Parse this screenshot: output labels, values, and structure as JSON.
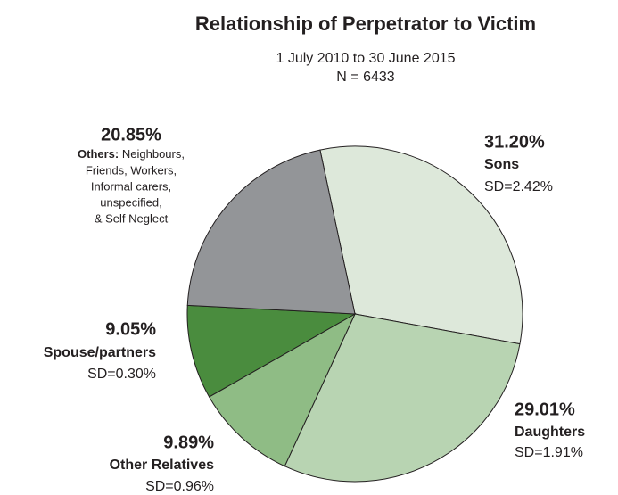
{
  "chart_data": {
    "type": "pie",
    "title": "Relationship of Perpetrator to Victim",
    "subtitle": [
      "1 July 2010 to 30 June 2015",
      "N = 6433"
    ],
    "categories": [
      "Sons",
      "Daughters",
      "Other Relatives",
      "Spouse/partners",
      "Others:"
    ],
    "values": [
      31.2,
      29.01,
      9.89,
      9.05,
      20.85
    ],
    "value_labels": [
      "31.20%",
      "29.01%",
      "9.89%",
      "9.05%",
      "20.85%"
    ],
    "sd_labels": [
      "SD=2.42%",
      "SD=1.91%",
      "SD=0.96%",
      "SD=0.30%",
      null
    ],
    "colors": [
      "#dde8da",
      "#b8d4b2",
      "#8fbc85",
      "#4a8c3e",
      "#939598"
    ],
    "others_description": [
      "Neighbours,",
      "Friends, Workers,",
      "Informal carers,",
      "unspecified,",
      "& Self Neglect"
    ]
  }
}
